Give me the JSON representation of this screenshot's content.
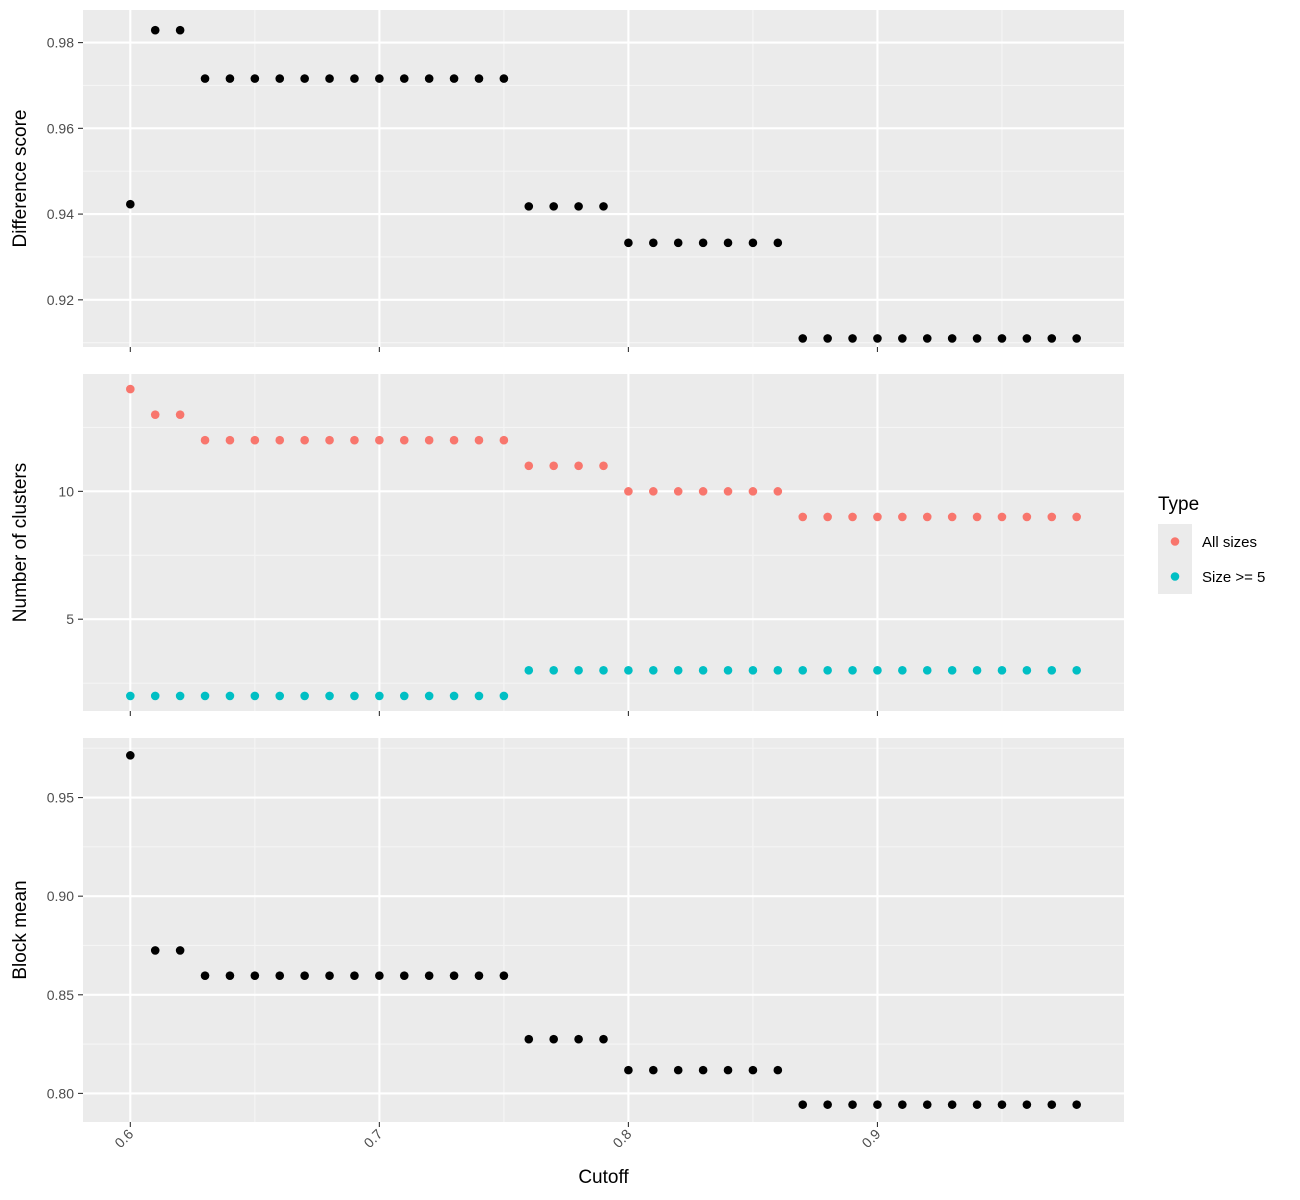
{
  "colors": {
    "panel_bg": "#ebebeb",
    "grid_major": "#ffffff",
    "grid_minor": "#f5f5f5",
    "tick": "#333333",
    "black_points": "#000000",
    "all_sizes": "#f8766d",
    "size_ge_5": "#00bfc4",
    "legend_key_bg": "#ebebeb"
  },
  "chart_data": [
    {
      "type": "scatter",
      "ylabel": "Difference score",
      "xlabel": "",
      "xlim": [
        0.581,
        0.999
      ],
      "ylim": [
        0.909,
        0.9876
      ],
      "xticks": [
        0.6,
        0.7,
        0.8,
        0.9
      ],
      "yticks": [
        0.92,
        0.94,
        0.96,
        0.98
      ],
      "yticks_labels": [
        "0.92",
        "0.94",
        "0.96",
        "0.98"
      ],
      "grid": true,
      "series": [
        {
          "color_key": "black_points",
          "x": [
            0.6,
            0.61,
            0.62,
            0.63,
            0.64,
            0.65,
            0.66,
            0.67,
            0.68,
            0.69,
            0.7,
            0.71,
            0.72,
            0.73,
            0.74,
            0.75,
            0.76,
            0.77,
            0.78,
            0.79,
            0.8,
            0.81,
            0.82,
            0.83,
            0.84,
            0.85,
            0.86,
            0.87,
            0.88,
            0.89,
            0.9,
            0.91,
            0.92,
            0.93,
            0.94,
            0.95,
            0.96,
            0.97,
            0.98
          ],
          "y": [
            0.9423,
            0.9829,
            0.9829,
            0.9716,
            0.9716,
            0.9716,
            0.9716,
            0.9716,
            0.9716,
            0.9716,
            0.9716,
            0.9716,
            0.9716,
            0.9716,
            0.9716,
            0.9716,
            0.9418,
            0.9418,
            0.9418,
            0.9418,
            0.9333,
            0.9333,
            0.9333,
            0.9333,
            0.9333,
            0.9333,
            0.9333,
            0.911,
            0.911,
            0.911,
            0.911,
            0.911,
            0.911,
            0.911,
            0.911,
            0.911,
            0.911,
            0.911,
            0.911
          ]
        }
      ]
    },
    {
      "type": "scatter",
      "ylabel": "Number of clusters",
      "xlabel": "",
      "xlim": [
        0.581,
        0.999
      ],
      "ylim": [
        1.41,
        14.59
      ],
      "xticks": [
        0.6,
        0.7,
        0.8,
        0.9
      ],
      "yticks": [
        5,
        10
      ],
      "yticks_labels": [
        "5",
        "10"
      ],
      "grid": true,
      "series": [
        {
          "name": "All sizes",
          "color_key": "all_sizes",
          "x": [
            0.6,
            0.61,
            0.62,
            0.63,
            0.64,
            0.65,
            0.66,
            0.67,
            0.68,
            0.69,
            0.7,
            0.71,
            0.72,
            0.73,
            0.74,
            0.75,
            0.76,
            0.77,
            0.78,
            0.79,
            0.8,
            0.81,
            0.82,
            0.83,
            0.84,
            0.85,
            0.86,
            0.87,
            0.88,
            0.89,
            0.9,
            0.91,
            0.92,
            0.93,
            0.94,
            0.95,
            0.96,
            0.97,
            0.98
          ],
          "y": [
            14,
            13,
            13,
            12,
            12,
            12,
            12,
            12,
            12,
            12,
            12,
            12,
            12,
            12,
            12,
            12,
            11,
            11,
            11,
            11,
            10,
            10,
            10,
            10,
            10,
            10,
            10,
            9,
            9,
            9,
            9,
            9,
            9,
            9,
            9,
            9,
            9,
            9,
            9
          ]
        },
        {
          "name": "Size >= 5",
          "color_key": "size_ge_5",
          "x": [
            0.6,
            0.61,
            0.62,
            0.63,
            0.64,
            0.65,
            0.66,
            0.67,
            0.68,
            0.69,
            0.7,
            0.71,
            0.72,
            0.73,
            0.74,
            0.75,
            0.76,
            0.77,
            0.78,
            0.79,
            0.8,
            0.81,
            0.82,
            0.83,
            0.84,
            0.85,
            0.86,
            0.87,
            0.88,
            0.89,
            0.9,
            0.91,
            0.92,
            0.93,
            0.94,
            0.95,
            0.96,
            0.97,
            0.98
          ],
          "y": [
            2,
            2,
            2,
            2,
            2,
            2,
            2,
            2,
            2,
            2,
            2,
            2,
            2,
            2,
            2,
            2,
            3,
            3,
            3,
            3,
            3,
            3,
            3,
            3,
            3,
            3,
            3,
            3,
            3,
            3,
            3,
            3,
            3,
            3,
            3,
            3,
            3,
            3,
            3
          ]
        }
      ],
      "legend": {
        "title": "Type",
        "placement": "right",
        "entries": [
          "All sizes",
          "Size >= 5"
        ]
      }
    },
    {
      "type": "scatter",
      "ylabel": "Block mean",
      "xlabel": "Cutoff",
      "xlim": [
        0.581,
        0.999
      ],
      "ylim": [
        0.7855,
        0.9802
      ],
      "xticks": [
        0.6,
        0.7,
        0.8,
        0.9
      ],
      "xticks_labels": [
        "0.6",
        "0.7",
        "0.8",
        "0.9"
      ],
      "yticks": [
        0.8,
        0.85,
        0.9,
        0.95
      ],
      "yticks_labels": [
        "0.80",
        "0.85",
        "0.90",
        "0.95"
      ],
      "grid": true,
      "series": [
        {
          "color_key": "black_points",
          "x": [
            0.6,
            0.61,
            0.62,
            0.63,
            0.64,
            0.65,
            0.66,
            0.67,
            0.68,
            0.69,
            0.7,
            0.71,
            0.72,
            0.73,
            0.74,
            0.75,
            0.76,
            0.77,
            0.78,
            0.79,
            0.8,
            0.81,
            0.82,
            0.83,
            0.84,
            0.85,
            0.86,
            0.87,
            0.88,
            0.89,
            0.9,
            0.91,
            0.92,
            0.93,
            0.94,
            0.95,
            0.96,
            0.97,
            0.98
          ],
          "y": [
            0.9714,
            0.8725,
            0.8725,
            0.8597,
            0.8597,
            0.8597,
            0.8597,
            0.8597,
            0.8597,
            0.8597,
            0.8597,
            0.8597,
            0.8597,
            0.8597,
            0.8597,
            0.8597,
            0.8275,
            0.8275,
            0.8275,
            0.8275,
            0.8118,
            0.8118,
            0.8118,
            0.8118,
            0.8118,
            0.8118,
            0.8118,
            0.7943,
            0.7943,
            0.7943,
            0.7943,
            0.7943,
            0.7943,
            0.7943,
            0.7943,
            0.7943,
            0.7943,
            0.7943,
            0.7943
          ]
        }
      ]
    }
  ]
}
